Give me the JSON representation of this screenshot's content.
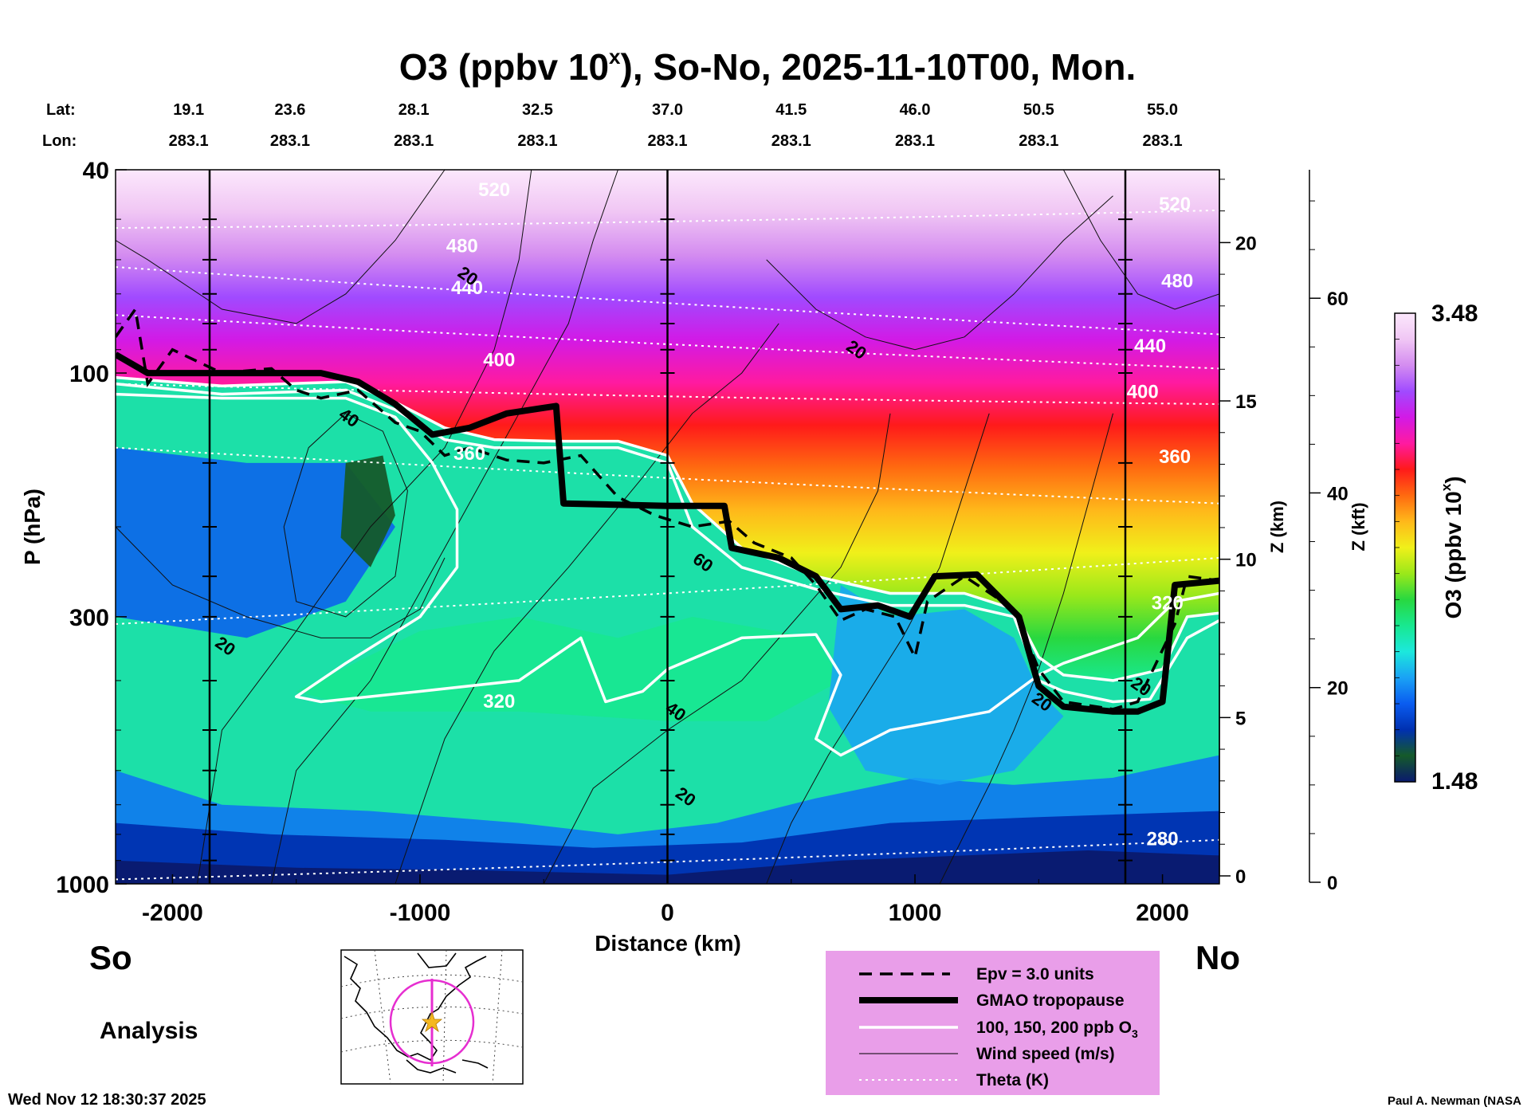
{
  "chart_data": {
    "type": "heatmap",
    "title_main": "O3 (ppbv 10",
    "title_sup": "x",
    "title_tail": "), So-No, 2025-11-10T00, Mon.",
    "lat_label": "Lat:",
    "lon_label": "Lon:",
    "lats": [
      "19.1",
      "23.6",
      "28.1",
      "32.5",
      "37.0",
      "41.5",
      "46.0",
      "50.5",
      "55.0"
    ],
    "lons": [
      "283.1",
      "283.1",
      "283.1",
      "283.1",
      "283.1",
      "283.1",
      "283.1",
      "283.1",
      "283.1"
    ],
    "station_distances_km": [
      -2025,
      -1525,
      -1025,
      -525,
      0,
      500,
      1000,
      1500,
      2000
    ],
    "xlabel": "Distance (km)",
    "x_ticks": [
      "-2000",
      "-1000",
      "0",
      "1000",
      "2000"
    ],
    "x_tick_values": [
      -2000,
      -1000,
      0,
      1000,
      2000
    ],
    "xlim": [
      -2230,
      2230
    ],
    "ylabel": "P (hPa)",
    "y_ticks": [
      "40",
      "100",
      "300",
      "1000"
    ],
    "y_tick_values": [
      40,
      100,
      300,
      1000
    ],
    "ylim": [
      1000,
      40
    ],
    "y_scale": "log",
    "z_km_label": "Z (km)",
    "z_km_ticks": [
      "0",
      "5",
      "10",
      "15",
      "20"
    ],
    "z_kft_label": "Z (kft)",
    "z_kft_ticks": [
      "0",
      "20",
      "40",
      "60"
    ],
    "vertical_lines_km": [
      -1850,
      0,
      1850
    ],
    "colorbar": {
      "label_main": "O3 (ppbv 10",
      "label_sup": "x",
      "label_tail": ")",
      "min": "1.48",
      "max": "3.48",
      "colors": [
        "#0a1a6e",
        "#155a2a",
        "#0030b0",
        "#0a5cf0",
        "#1aa2f5",
        "#1ce8dc",
        "#18e890",
        "#28d840",
        "#9ae81a",
        "#f0f01a",
        "#ffb81a",
        "#ff6a10",
        "#ff1a1a",
        "#ff1aa0",
        "#d21ae6",
        "#a04aff",
        "#d48cf0",
        "#f0c6f4",
        "#fce8fc"
      ]
    },
    "tropopause_hpa": [
      [
        -2230,
        92
      ],
      [
        -2100,
        100
      ],
      [
        -1650,
        100
      ],
      [
        -1400,
        100
      ],
      [
        -1250,
        104
      ],
      [
        -1100,
        115
      ],
      [
        -950,
        132
      ],
      [
        -800,
        128
      ],
      [
        -650,
        120
      ],
      [
        -450,
        116
      ],
      [
        -420,
        180
      ],
      [
        0,
        182
      ],
      [
        230,
        182
      ],
      [
        260,
        220
      ],
      [
        450,
        230
      ],
      [
        600,
        250
      ],
      [
        700,
        290
      ],
      [
        850,
        285
      ],
      [
        980,
        300
      ],
      [
        1080,
        250
      ],
      [
        1250,
        248
      ],
      [
        1420,
        300
      ],
      [
        1500,
        410
      ],
      [
        1600,
        450
      ],
      [
        1800,
        460
      ],
      [
        1900,
        460
      ],
      [
        2000,
        440
      ],
      [
        2050,
        260
      ],
      [
        2230,
        255
      ]
    ],
    "epv_hpa": [
      [
        -2230,
        85
      ],
      [
        -2150,
        75
      ],
      [
        -2100,
        105
      ],
      [
        -2000,
        90
      ],
      [
        -1800,
        100
      ],
      [
        -1600,
        98
      ],
      [
        -1500,
        108
      ],
      [
        -1400,
        112
      ],
      [
        -1250,
        108
      ],
      [
        -1100,
        125
      ],
      [
        -1000,
        130
      ],
      [
        -900,
        145
      ],
      [
        -800,
        140
      ],
      [
        -650,
        148
      ],
      [
        -500,
        150
      ],
      [
        -350,
        145
      ],
      [
        -200,
        175
      ],
      [
        -50,
        190
      ],
      [
        100,
        200
      ],
      [
        250,
        195
      ],
      [
        350,
        215
      ],
      [
        500,
        230
      ],
      [
        600,
        260
      ],
      [
        700,
        305
      ],
      [
        800,
        290
      ],
      [
        920,
        300
      ],
      [
        1000,
        360
      ],
      [
        1050,
        280
      ],
      [
        1200,
        250
      ],
      [
        1400,
        290
      ],
      [
        1500,
        380
      ],
      [
        1600,
        440
      ],
      [
        1800,
        455
      ],
      [
        1900,
        440
      ],
      [
        2050,
        310
      ],
      [
        2100,
        250
      ],
      [
        2230,
        255
      ]
    ],
    "o3_contours_hpa": [
      {
        "label": "100",
        "points": [
          [
            -2230,
            105
          ],
          [
            -1800,
            110
          ],
          [
            -1300,
            108
          ],
          [
            -1100,
            118
          ],
          [
            -900,
            135
          ],
          [
            -700,
            140
          ],
          [
            -450,
            140
          ],
          [
            -200,
            140
          ],
          [
            0,
            150
          ],
          [
            100,
            200
          ],
          [
            300,
            240
          ],
          [
            600,
            265
          ],
          [
            900,
            285
          ],
          [
            1200,
            285
          ],
          [
            1400,
            300
          ],
          [
            1500,
            400
          ],
          [
            1600,
            420
          ],
          [
            1800,
            440
          ],
          [
            1950,
            435
          ],
          [
            2100,
            330
          ],
          [
            2230,
            305
          ]
        ]
      },
      {
        "label": "150",
        "points": [
          [
            -2230,
            110
          ],
          [
            -1800,
            112
          ],
          [
            -1300,
            112
          ],
          [
            -1100,
            122
          ],
          [
            -950,
            150
          ],
          [
            -850,
            185
          ],
          [
            -850,
            240
          ],
          [
            -1000,
            300
          ],
          [
            -1300,
            370
          ],
          [
            -1500,
            430
          ],
          [
            -1400,
            440
          ],
          [
            -1000,
            420
          ],
          [
            -600,
            400
          ],
          [
            -350,
            330
          ],
          [
            -250,
            440
          ],
          [
            -100,
            420
          ],
          [
            0,
            380
          ],
          [
            300,
            330
          ],
          [
            600,
            325
          ],
          [
            700,
            390
          ],
          [
            600,
            520
          ],
          [
            700,
            560
          ],
          [
            900,
            500
          ],
          [
            1100,
            480
          ],
          [
            1300,
            460
          ],
          [
            1500,
            390
          ],
          [
            1600,
            370
          ],
          [
            1900,
            330
          ],
          [
            2050,
            280
          ],
          [
            2230,
            270
          ]
        ]
      },
      {
        "label": "200",
        "points": [
          [
            -2230,
            102
          ],
          [
            -1800,
            106
          ],
          [
            -1300,
            104
          ],
          [
            -1100,
            114
          ],
          [
            -900,
            128
          ],
          [
            -700,
            135
          ],
          [
            -450,
            136
          ],
          [
            -200,
            136
          ],
          [
            0,
            145
          ],
          [
            100,
            180
          ],
          [
            300,
            220
          ],
          [
            600,
            250
          ],
          [
            900,
            270
          ],
          [
            1200,
            270
          ],
          [
            1400,
            290
          ],
          [
            1500,
            360
          ],
          [
            1600,
            390
          ],
          [
            1800,
            400
          ],
          [
            2000,
            380
          ],
          [
            2100,
            300
          ],
          [
            2230,
            295
          ]
        ]
      }
    ],
    "theta_levels": [
      {
        "label": "280",
        "p_left": 980,
        "p_right": 820
      },
      {
        "label": "320",
        "p_left": 310,
        "p_right": 230
      },
      {
        "label": "360",
        "p_left": 140,
        "p_right": 180
      },
      {
        "label": "400",
        "p_left": 105,
        "p_right": 115
      },
      {
        "label": "440",
        "p_left": 77,
        "p_right": 98
      },
      {
        "label": "480",
        "p_left": 62,
        "p_right": 84
      },
      {
        "label": "520",
        "p_left": 52,
        "p_right": 48
      }
    ],
    "theta_label_positions_km": [
      {
        "label": "520",
        "x": -700,
        "p": 45
      },
      {
        "label": "480",
        "x": -830,
        "p": 58
      },
      {
        "label": "440",
        "x": -810,
        "p": 70
      },
      {
        "label": "400",
        "x": -680,
        "p": 97
      },
      {
        "label": "360",
        "x": -800,
        "p": 148
      },
      {
        "label": "320",
        "x": -680,
        "p": 452
      },
      {
        "label": "280",
        "x": 2000,
        "p": 840
      },
      {
        "label": "520",
        "x": 2050,
        "p": 48
      },
      {
        "label": "480",
        "x": 2060,
        "p": 68
      },
      {
        "label": "440",
        "x": 1950,
        "p": 91
      },
      {
        "label": "400",
        "x": 1920,
        "p": 112
      },
      {
        "label": "360",
        "x": 2050,
        "p": 150
      },
      {
        "label": "320",
        "x": 2020,
        "p": 290
      }
    ],
    "wind_labels": [
      {
        "label": "20",
        "x": -820,
        "p": 66
      },
      {
        "label": "20",
        "x": 750,
        "p": 92
      },
      {
        "label": "40",
        "x": -1300,
        "p": 125
      },
      {
        "label": "60",
        "x": 130,
        "p": 240
      },
      {
        "label": "20",
        "x": -1800,
        "p": 350
      },
      {
        "label": "40",
        "x": 20,
        "p": 470
      },
      {
        "label": "20",
        "x": 60,
        "p": 690
      },
      {
        "label": "20",
        "x": 1500,
        "p": 450
      },
      {
        "label": "20",
        "x": 1900,
        "p": 420
      }
    ],
    "direction_left": "So",
    "direction_right": "No",
    "analysis_label": "Analysis",
    "timestamp": "Wed Nov 12 18:30:37 2025",
    "credit": "Paul A. Newman (NASA",
    "legend": {
      "epv": "Epv = 3.0 units",
      "tropopause": "GMAO tropopause",
      "o3_main": "100, 150, 200 ppb O",
      "o3_sub": "3",
      "wind": "Wind speed (m/s)",
      "theta": "Theta (K)"
    },
    "colors": {
      "legend_bg": "#e99ee9",
      "map_circle": "#e62ed0",
      "map_star": "#f5b820",
      "theta_line": "#ffffff",
      "o3_line": "#ffffff"
    }
  }
}
